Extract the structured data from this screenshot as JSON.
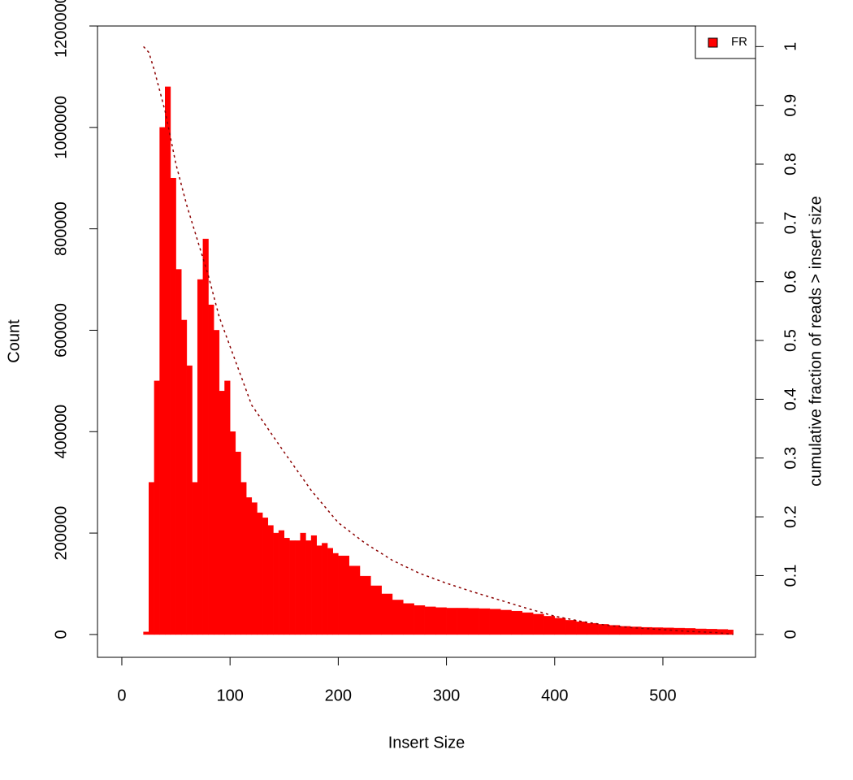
{
  "chart_data": {
    "type": "histogram",
    "xlabel": "Insert Size",
    "ylabel": "Count",
    "y2label": "cumulative fraction of reads > insert size",
    "xlim": [
      -22.5,
      585.6
    ],
    "ylim": [
      -45000,
      1200000
    ],
    "y2lim": [
      -0.039,
      1.035
    ],
    "xticks": [
      0,
      100,
      200,
      300,
      400,
      500
    ],
    "yticks": [
      0,
      200000,
      400000,
      600000,
      800000,
      1000000,
      1200000
    ],
    "y2ticks": [
      0,
      0.1,
      0.2,
      0.3,
      0.4,
      0.5,
      0.6,
      0.7,
      0.8,
      0.9,
      1
    ],
    "legend": "topright",
    "bins": [
      20,
      25,
      30,
      35,
      40,
      45,
      50,
      55,
      60,
      65,
      70,
      75,
      80,
      85,
      90,
      95,
      100,
      105,
      110,
      115,
      120,
      125,
      130,
      135,
      140,
      145,
      150,
      155,
      160,
      165,
      170,
      175,
      180,
      185,
      190,
      195,
      200,
      210,
      220,
      230,
      240,
      250,
      260,
      270,
      280,
      290,
      300,
      310,
      320,
      330,
      340,
      350,
      360,
      370,
      380,
      390,
      400,
      410,
      420,
      430,
      440,
      450,
      460,
      470,
      480,
      490,
      500,
      510,
      520,
      530,
      540,
      550,
      560,
      565
    ],
    "series": [
      {
        "name": "FR",
        "color": "#ff0000",
        "values": [
          5000,
          300000,
          500000,
          1000000,
          1080000,
          900000,
          720000,
          620000,
          530000,
          300000,
          700000,
          780000,
          650000,
          600000,
          480000,
          500000,
          400000,
          360000,
          300000,
          270000,
          260000,
          240000,
          230000,
          215000,
          200000,
          205000,
          190000,
          185000,
          185000,
          200000,
          185000,
          195000,
          175000,
          180000,
          170000,
          160000,
          155000,
          135000,
          115000,
          96000,
          80000,
          68000,
          61000,
          57000,
          54500,
          53000,
          52000,
          52000,
          51500,
          51000,
          50000,
          48000,
          46000,
          43000,
          40000,
          36000,
          32000,
          28000,
          25000,
          22000,
          20000,
          18000,
          16000,
          15000,
          14000,
          13500,
          13000,
          12500,
          12000,
          11000,
          10500,
          10000,
          9000
        ]
      }
    ],
    "cumulative": {
      "color": "#8b0000",
      "axis": "y2",
      "x": [
        20,
        25,
        30,
        40,
        50,
        60,
        70,
        80,
        90,
        100,
        120,
        150,
        175,
        200,
        225,
        250,
        275,
        300,
        325,
        350,
        375,
        400,
        425,
        450,
        475,
        500,
        525,
        550,
        565
      ],
      "values": [
        1,
        0.99,
        0.96,
        0.89,
        0.8,
        0.73,
        0.67,
        0.61,
        0.54,
        0.49,
        0.39,
        0.31,
        0.245,
        0.19,
        0.155,
        0.126,
        0.104,
        0.087,
        0.072,
        0.058,
        0.044,
        0.031,
        0.022,
        0.015,
        0.011,
        0.008,
        0.005,
        0.003,
        0
      ]
    }
  }
}
